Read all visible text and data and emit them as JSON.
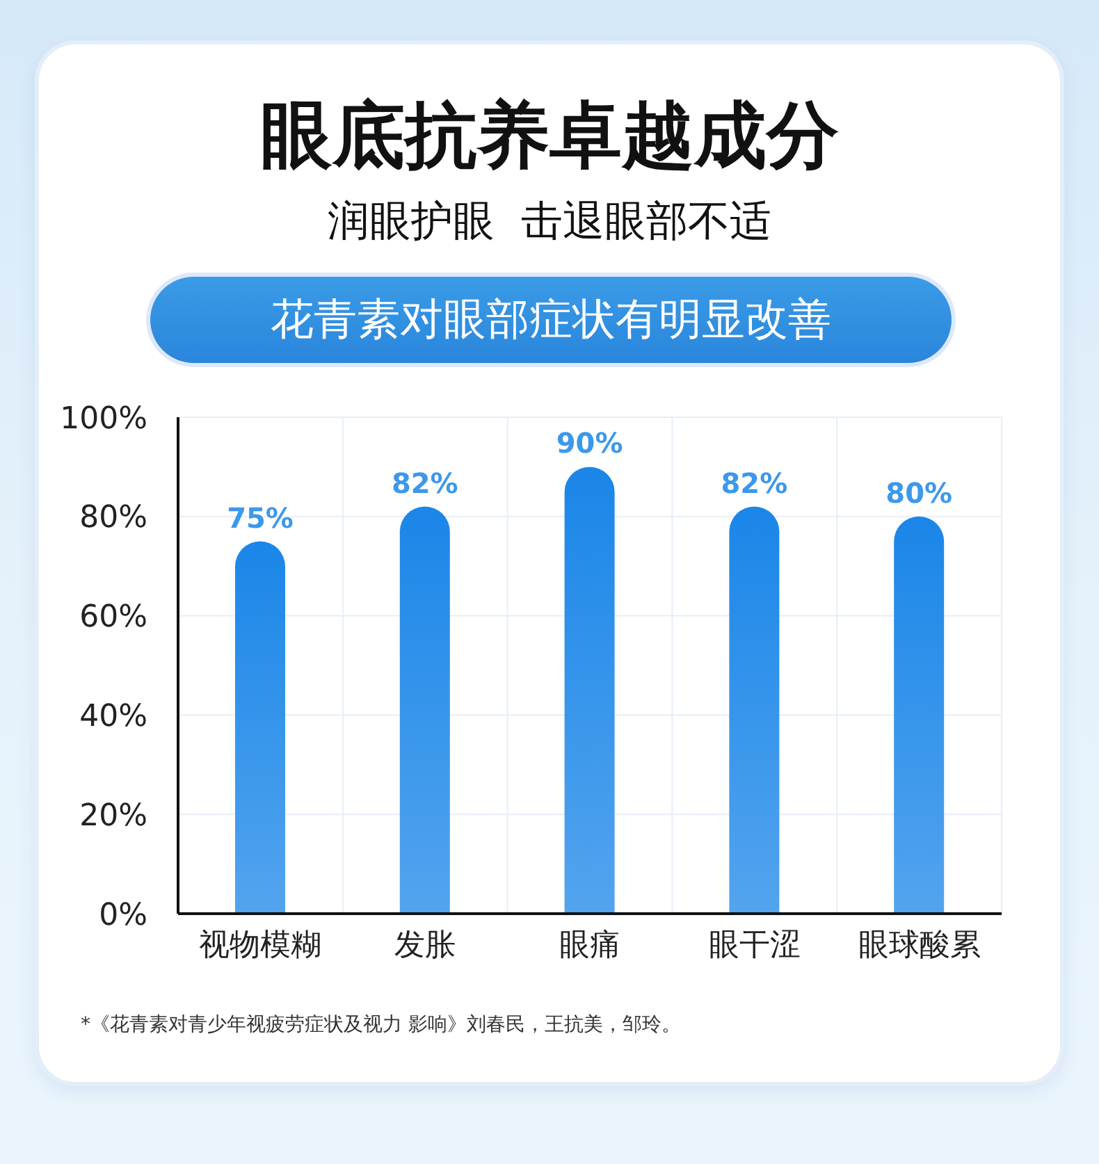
{
  "chart_data": {
    "type": "bar",
    "title": "眼底抗养卓越成分",
    "subtitle": "润眼护眼  击退眼部不适",
    "annotations": [
      "花青素对眼部症状有明显改善",
      "*《花青素对青少年视疲劳症状及视力 影响》刘春民，王抗美，邹玲。"
    ],
    "categories": [
      "视物模糊",
      "发胀",
      "眼痛",
      "眼干涩",
      "眼球酸累"
    ],
    "values": [
      75,
      82,
      90,
      82,
      80
    ],
    "color": "#1a86e8",
    "value_labels": [
      "75%",
      "82%",
      "90%",
      "82%",
      "80%"
    ],
    "ylim": [
      0,
      100
    ],
    "yticks": [
      {
        "value": 0,
        "label": "0%"
      },
      {
        "value": 20,
        "label": "20%"
      },
      {
        "value": 40,
        "label": "40%"
      },
      {
        "value": 60,
        "label": "60%"
      },
      {
        "value": 80,
        "label": "80%"
      },
      {
        "value": 100,
        "label": "100%"
      }
    ],
    "grid": true
  }
}
